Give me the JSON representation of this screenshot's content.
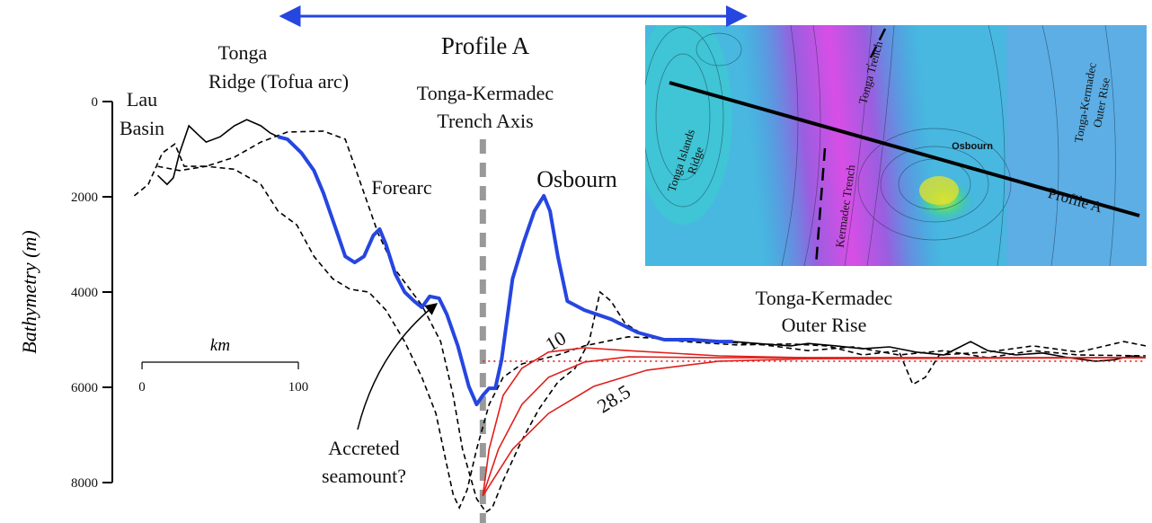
{
  "chart_data": {
    "type": "line",
    "ylabel": "Bathymetry (m)",
    "ylim": [
      0,
      8000
    ],
    "y_inverted": true,
    "yticks": [
      0,
      2000,
      4000,
      6000,
      8000
    ],
    "xlabel": "km",
    "xlim": [
      -19,
      642
    ],
    "xticks": [
      0,
      100
    ],
    "profile_title": "Profile A",
    "profile_extent": [
      89,
      386
    ],
    "profile_color": "#2646e0",
    "trench_axis_x": 218,
    "annotations": {
      "tonga_ridge": [
        "Tonga",
        "Ridge (Tofua arc)"
      ],
      "lau_basin": [
        "Lau",
        "Basin"
      ],
      "trench_axis": [
        "Tonga-Kermadec",
        "Trench Axis"
      ],
      "forearc": [
        "Forearc"
      ],
      "osbourn": [
        "Osbourn"
      ],
      "outer_rise": [
        "Tonga-Kermadec",
        "Outer Rise"
      ],
      "seamount": [
        "Accreted",
        "seamount?"
      ]
    },
    "series": [
      {
        "color": "#000000",
        "line_style": "solid",
        "x": [
          10,
          16,
          20,
          24,
          30,
          36,
          41,
          50,
          59,
          67,
          76,
          82,
          87
        ],
        "values": [
          1550,
          1740,
          1600,
          1080,
          510,
          700,
          850,
          740,
          510,
          380,
          510,
          660,
          740
        ]
      },
      {
        "color": "#000000",
        "line_style": "solid",
        "x": [
          378,
          398,
          415,
          426,
          444,
          461,
          478,
          495,
          513,
          530,
          541,
          559,
          576,
          593,
          610,
          622,
          633,
          642
        ],
        "values": [
          5040,
          5090,
          5130,
          5080,
          5130,
          5190,
          5150,
          5260,
          5320,
          5040,
          5230,
          5320,
          5280,
          5380,
          5450,
          5420,
          5340,
          5380
        ]
      },
      {
        "color": "#000000",
        "line_style": "dashed",
        "x": [
          -5,
          4,
          13,
          21,
          27,
          41,
          59,
          76,
          93,
          116,
          130,
          139,
          151,
          162,
          179,
          191,
          199,
          205,
          214,
          220,
          224,
          231,
          243,
          254,
          266,
          277,
          286,
          293,
          300,
          309,
          323,
          346,
          380,
          415,
          438,
          461,
          484,
          493,
          501,
          510,
          541,
          570,
          599,
          628,
          642
        ],
        "values": [
          1980,
          1740,
          1080,
          890,
          1360,
          1360,
          1170,
          850,
          640,
          620,
          790,
          1640,
          2770,
          3530,
          4280,
          5040,
          6170,
          7300,
          8340,
          8620,
          8530,
          7960,
          7110,
          6450,
          5890,
          5600,
          5040,
          4000,
          4190,
          4660,
          4940,
          5040,
          5110,
          5090,
          5130,
          5320,
          5230,
          5940,
          5790,
          5320,
          5260,
          5130,
          5260,
          5040,
          5130
        ]
      },
      {
        "color": "#000000",
        "line_style": "dashed",
        "x": [
          10,
          24,
          41,
          59,
          76,
          87,
          99,
          110,
          122,
          133,
          145,
          156,
          168,
          179,
          188,
          194,
          199,
          203,
          208,
          214,
          222,
          231,
          243,
          254,
          266,
          283,
          311,
          369,
          398,
          426,
          455,
          484,
          513,
          541,
          570,
          599,
          642
        ],
        "values": [
          1360,
          1450,
          1360,
          1420,
          1740,
          2300,
          2590,
          3250,
          3720,
          3940,
          4000,
          4380,
          5040,
          5790,
          6550,
          7490,
          8250,
          8530,
          8150,
          7300,
          6360,
          5790,
          5510,
          5420,
          5320,
          5130,
          4940,
          5040,
          5110,
          5230,
          5150,
          5320,
          5230,
          5380,
          5230,
          5320,
          5340
        ]
      },
      {
        "color": "#e0201c",
        "line_style": "solid",
        "label": "10",
        "x": [
          218,
          222,
          231,
          243,
          260,
          283,
          311,
          369,
          426,
          642
        ],
        "values": [
          8280,
          7300,
          6170,
          5600,
          5260,
          5170,
          5230,
          5340,
          5380,
          5380
        ]
      },
      {
        "color": "#e0201c",
        "line_style": "solid",
        "x": [
          218,
          228,
          243,
          260,
          283,
          311,
          369,
          642
        ],
        "values": [
          8280,
          7300,
          6360,
          5790,
          5470,
          5360,
          5380,
          5380
        ]
      },
      {
        "color": "#e0201c",
        "line_style": "solid",
        "label": "28.5",
        "x": [
          218,
          237,
          260,
          289,
          323,
          369,
          426,
          642
        ],
        "values": [
          8280,
          7300,
          6550,
          5980,
          5640,
          5450,
          5400,
          5380
        ]
      },
      {
        "color": "#e0201c",
        "line_style": "dotted",
        "x": [
          218,
          642
        ],
        "values": [
          5450,
          5450
        ]
      },
      {
        "color": "#2646e0",
        "line_style": "thick",
        "x": [
          87,
          93,
          102,
          110,
          116,
          125,
          130,
          136,
          142,
          148,
          152,
          156,
          162,
          168,
          174,
          179,
          184,
          190,
          195,
          202,
          209,
          214,
          218,
          222,
          226,
          230,
          237,
          244,
          251,
          257,
          261,
          266,
          272,
          283,
          300,
          317,
          334,
          352,
          369,
          378
        ],
        "values": [
          740,
          790,
          1080,
          1450,
          1920,
          2770,
          3250,
          3380,
          3250,
          2810,
          2680,
          3000,
          3620,
          4000,
          4190,
          4320,
          4090,
          4130,
          4470,
          5130,
          5980,
          6360,
          6170,
          6020,
          6020,
          5420,
          3720,
          2960,
          2300,
          1980,
          2300,
          3250,
          4190,
          4380,
          4570,
          4850,
          5000,
          5000,
          5040,
          5040
        ]
      }
    ]
  },
  "inset_map": {
    "ridge": [
      "Tonga Islands",
      "Ridge"
    ],
    "kermadec_trench": "Kermadec Trench",
    "tonga_trench": "Tonga Trench",
    "seamount": "Osbourn",
    "outer_rise": [
      "Tonga-Kermadec",
      "Outer Rise"
    ],
    "profile": "Profile A"
  }
}
